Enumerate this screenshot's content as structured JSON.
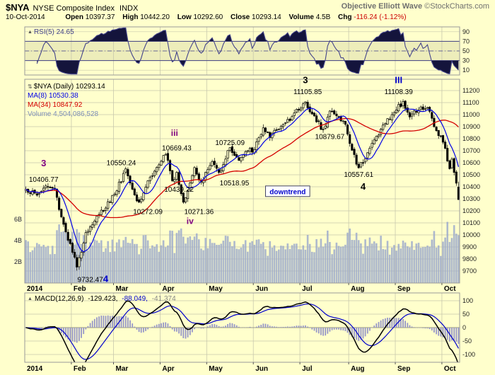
{
  "palette": {
    "bg": "#FFFFCC",
    "grid": "#C8C8AD",
    "border": "#9A9A9A",
    "candle": "#000000",
    "ma_fast": "#0000E6",
    "ma_slow": "#D40000",
    "volume": "#9AA8CC",
    "rsi": "#44448B",
    "rsi_fill": "#14143C",
    "rsi_band": "rgba(130,130,80,0.14)",
    "macd_line": "#000000",
    "macd_signal": "#0000CC",
    "macd_hist": "#9797C8",
    "zero": "#99997A",
    "chg_red": "#CC0000"
  },
  "icons": {
    "collapse": "▲",
    "updown": "⇅"
  },
  "header": {
    "symbol": "$NYA",
    "index_name": "NYSE Composite Index",
    "exchange": "INDX",
    "annotator": "Objective Elliott Wave",
    "source": "©StockCharts.com",
    "date": "10-Oct-2014",
    "quote": [
      {
        "label": "Open",
        "value": "10397.37"
      },
      {
        "label": "High",
        "value": "10442.20"
      },
      {
        "label": "Low",
        "value": "10292.60"
      },
      {
        "label": "Close",
        "value": "10293.14"
      },
      {
        "label": "Volume",
        "value": "4.5B"
      },
      {
        "label": "Chg",
        "value": "-116.24 (-1.12%)",
        "color": "#CC0000"
      }
    ]
  },
  "chart_data": {
    "type": "candlestick",
    "symbol": "$NYA",
    "timeframe": "Daily",
    "x_axis": {
      "total_days": 196,
      "months": [
        {
          "label": "2014",
          "day": 0
        },
        {
          "label": "Feb",
          "day": 21
        },
        {
          "label": "Mar",
          "day": 40
        },
        {
          "label": "Apr",
          "day": 61
        },
        {
          "label": "May",
          "day": 82
        },
        {
          "label": "Jun",
          "day": 103
        },
        {
          "label": "Jul",
          "day": 124
        },
        {
          "label": "Aug",
          "day": 146
        },
        {
          "label": "Sep",
          "day": 167
        },
        {
          "label": "Oct",
          "day": 188
        }
      ]
    },
    "price_panel": {
      "legend": {
        "title": "$NYA (Daily) 10293.14",
        "ma_fast": "MA(8) 10530.38",
        "ma_slow": "MA(34) 10847.92",
        "volume": "Volume 4,504,086,528"
      },
      "ylim": [
        9600,
        11294
      ],
      "yticks": [
        9700,
        9800,
        9900,
        10000,
        10100,
        10200,
        10300,
        10400,
        10500,
        10600,
        10700,
        10800,
        10900,
        11000,
        11100,
        11200
      ],
      "volume_ticks": [
        {
          "label": "2B",
          "value": 2
        },
        {
          "label": "4B",
          "value": 4
        },
        {
          "label": "6B",
          "value": 6
        }
      ],
      "last_ohlc": [
        10397.37,
        10442.2,
        10292.6,
        10293.14
      ],
      "last_volume_b": 4.5,
      "close_anchors": [
        [
          0,
          10380
        ],
        [
          5,
          10330
        ],
        [
          9,
          10406.77
        ],
        [
          13,
          10380
        ],
        [
          16,
          10150
        ],
        [
          23,
          9732.47
        ],
        [
          27,
          10020
        ],
        [
          33,
          10170
        ],
        [
          40,
          10340
        ],
        [
          45,
          10550.24
        ],
        [
          48,
          10380
        ],
        [
          51,
          10272.09
        ],
        [
          55,
          10450
        ],
        [
          58,
          10530
        ],
        [
          63,
          10669.43
        ],
        [
          66,
          10450
        ],
        [
          68,
          10520
        ],
        [
          71,
          10271.36
        ],
        [
          76,
          10560
        ],
        [
          79,
          10439.22
        ],
        [
          84,
          10610
        ],
        [
          87,
          10518.95
        ],
        [
          92,
          10725.09
        ],
        [
          96,
          10620
        ],
        [
          100,
          10700
        ],
        [
          103,
          10710
        ],
        [
          107,
          10890
        ],
        [
          110,
          10810
        ],
        [
          114,
          10880
        ],
        [
          118,
          10960
        ],
        [
          123,
          11040
        ],
        [
          126,
          11105.85
        ],
        [
          131,
          10940
        ],
        [
          134,
          10879.67
        ],
        [
          137,
          11030
        ],
        [
          140,
          10990
        ],
        [
          144,
          10920
        ],
        [
          146,
          10760
        ],
        [
          150,
          10557.61
        ],
        [
          155,
          10720
        ],
        [
          160,
          10880
        ],
        [
          165,
          11000
        ],
        [
          170,
          11108.39
        ],
        [
          173,
          10980
        ],
        [
          177,
          11040
        ],
        [
          181,
          11060
        ],
        [
          184,
          10900
        ],
        [
          187,
          10820
        ],
        [
          189,
          10720
        ],
        [
          191,
          10550
        ],
        [
          192,
          10630
        ],
        [
          194,
          10430
        ],
        [
          195,
          10293.14
        ]
      ],
      "annotations": [
        {
          "text": "3",
          "day": 8,
          "price": 10590,
          "color": "#800080",
          "size": 13,
          "bold": true
        },
        {
          "text": "10406.77",
          "day": 8,
          "price": 10462,
          "color": "#000000",
          "size": 10
        },
        {
          "text": "9732.47",
          "day": 29,
          "price": 9630,
          "color": "#000000",
          "size": 10
        },
        {
          "text": "4",
          "day": 36,
          "price": 9630,
          "color": "#0000CC",
          "size": 13,
          "bold": true
        },
        {
          "text": "10550.24",
          "day": 43,
          "price": 10600,
          "color": "#000000",
          "size": 10
        },
        {
          "text": "10272.09",
          "day": 55,
          "price": 10195,
          "color": "#000000",
          "size": 10
        },
        {
          "text": "iii",
          "day": 67,
          "price": 10845,
          "color": "#800080",
          "size": 12,
          "bold": true
        },
        {
          "text": "10669.43",
          "day": 68,
          "price": 10722,
          "color": "#000000",
          "size": 10
        },
        {
          "text": "10439.22",
          "day": 69,
          "price": 10378,
          "color": "#000000",
          "size": 10
        },
        {
          "text": "10271.36",
          "day": 78,
          "price": 10195,
          "color": "#000000",
          "size": 10
        },
        {
          "text": "iv",
          "day": 74,
          "price": 10112,
          "color": "#800080",
          "size": 12,
          "bold": true
        },
        {
          "text": "10725.09",
          "day": 92,
          "price": 10768,
          "color": "#000000",
          "size": 10
        },
        {
          "text": "10518.95",
          "day": 94,
          "price": 10432,
          "color": "#000000",
          "size": 10
        },
        {
          "text": "downtrend",
          "day": 118,
          "price": 10360,
          "color": "#0000CC",
          "size": 10,
          "bold": true,
          "box": true
        },
        {
          "text": "3",
          "day": 126,
          "price": 11282,
          "color": "#000000",
          "size": 13,
          "bold": true
        },
        {
          "text": "11105.85",
          "day": 127,
          "price": 11192,
          "color": "#000000",
          "size": 10
        },
        {
          "text": "10879.67",
          "day": 137,
          "price": 10818,
          "color": "#000000",
          "size": 10
        },
        {
          "text": "10557.61",
          "day": 150,
          "price": 10502,
          "color": "#000000",
          "size": 10
        },
        {
          "text": "4",
          "day": 152,
          "price": 10398,
          "color": "#000000",
          "size": 13,
          "bold": true
        },
        {
          "text": "11108.39",
          "day": 168,
          "price": 11192,
          "color": "#000000",
          "size": 10
        },
        {
          "text": "III",
          "day": 168,
          "price": 11282,
          "color": "#0000CC",
          "size": 13,
          "bold": true
        }
      ]
    },
    "rsi_panel": {
      "legend": "RSI(5) 24.65",
      "period": 5,
      "last_value": 24.65,
      "yticks": [
        90,
        70,
        50,
        30,
        10
      ],
      "overbought": 70,
      "midline": 50,
      "oversold": 30,
      "ylim": [
        0,
        100
      ]
    },
    "macd_panel": {
      "legend_name": "MACD(12,26,9)",
      "values": [
        {
          "text": "-129.423,",
          "color": "#000000"
        },
        {
          "text": "-88.049,",
          "color": "#0000CC"
        },
        {
          "text": "-41.374",
          "color": "#888888"
        }
      ],
      "params": [
        12,
        26,
        9
      ],
      "yticks": [
        100,
        50,
        0,
        -50,
        -100
      ],
      "ylim": [
        -135,
        125
      ]
    }
  }
}
